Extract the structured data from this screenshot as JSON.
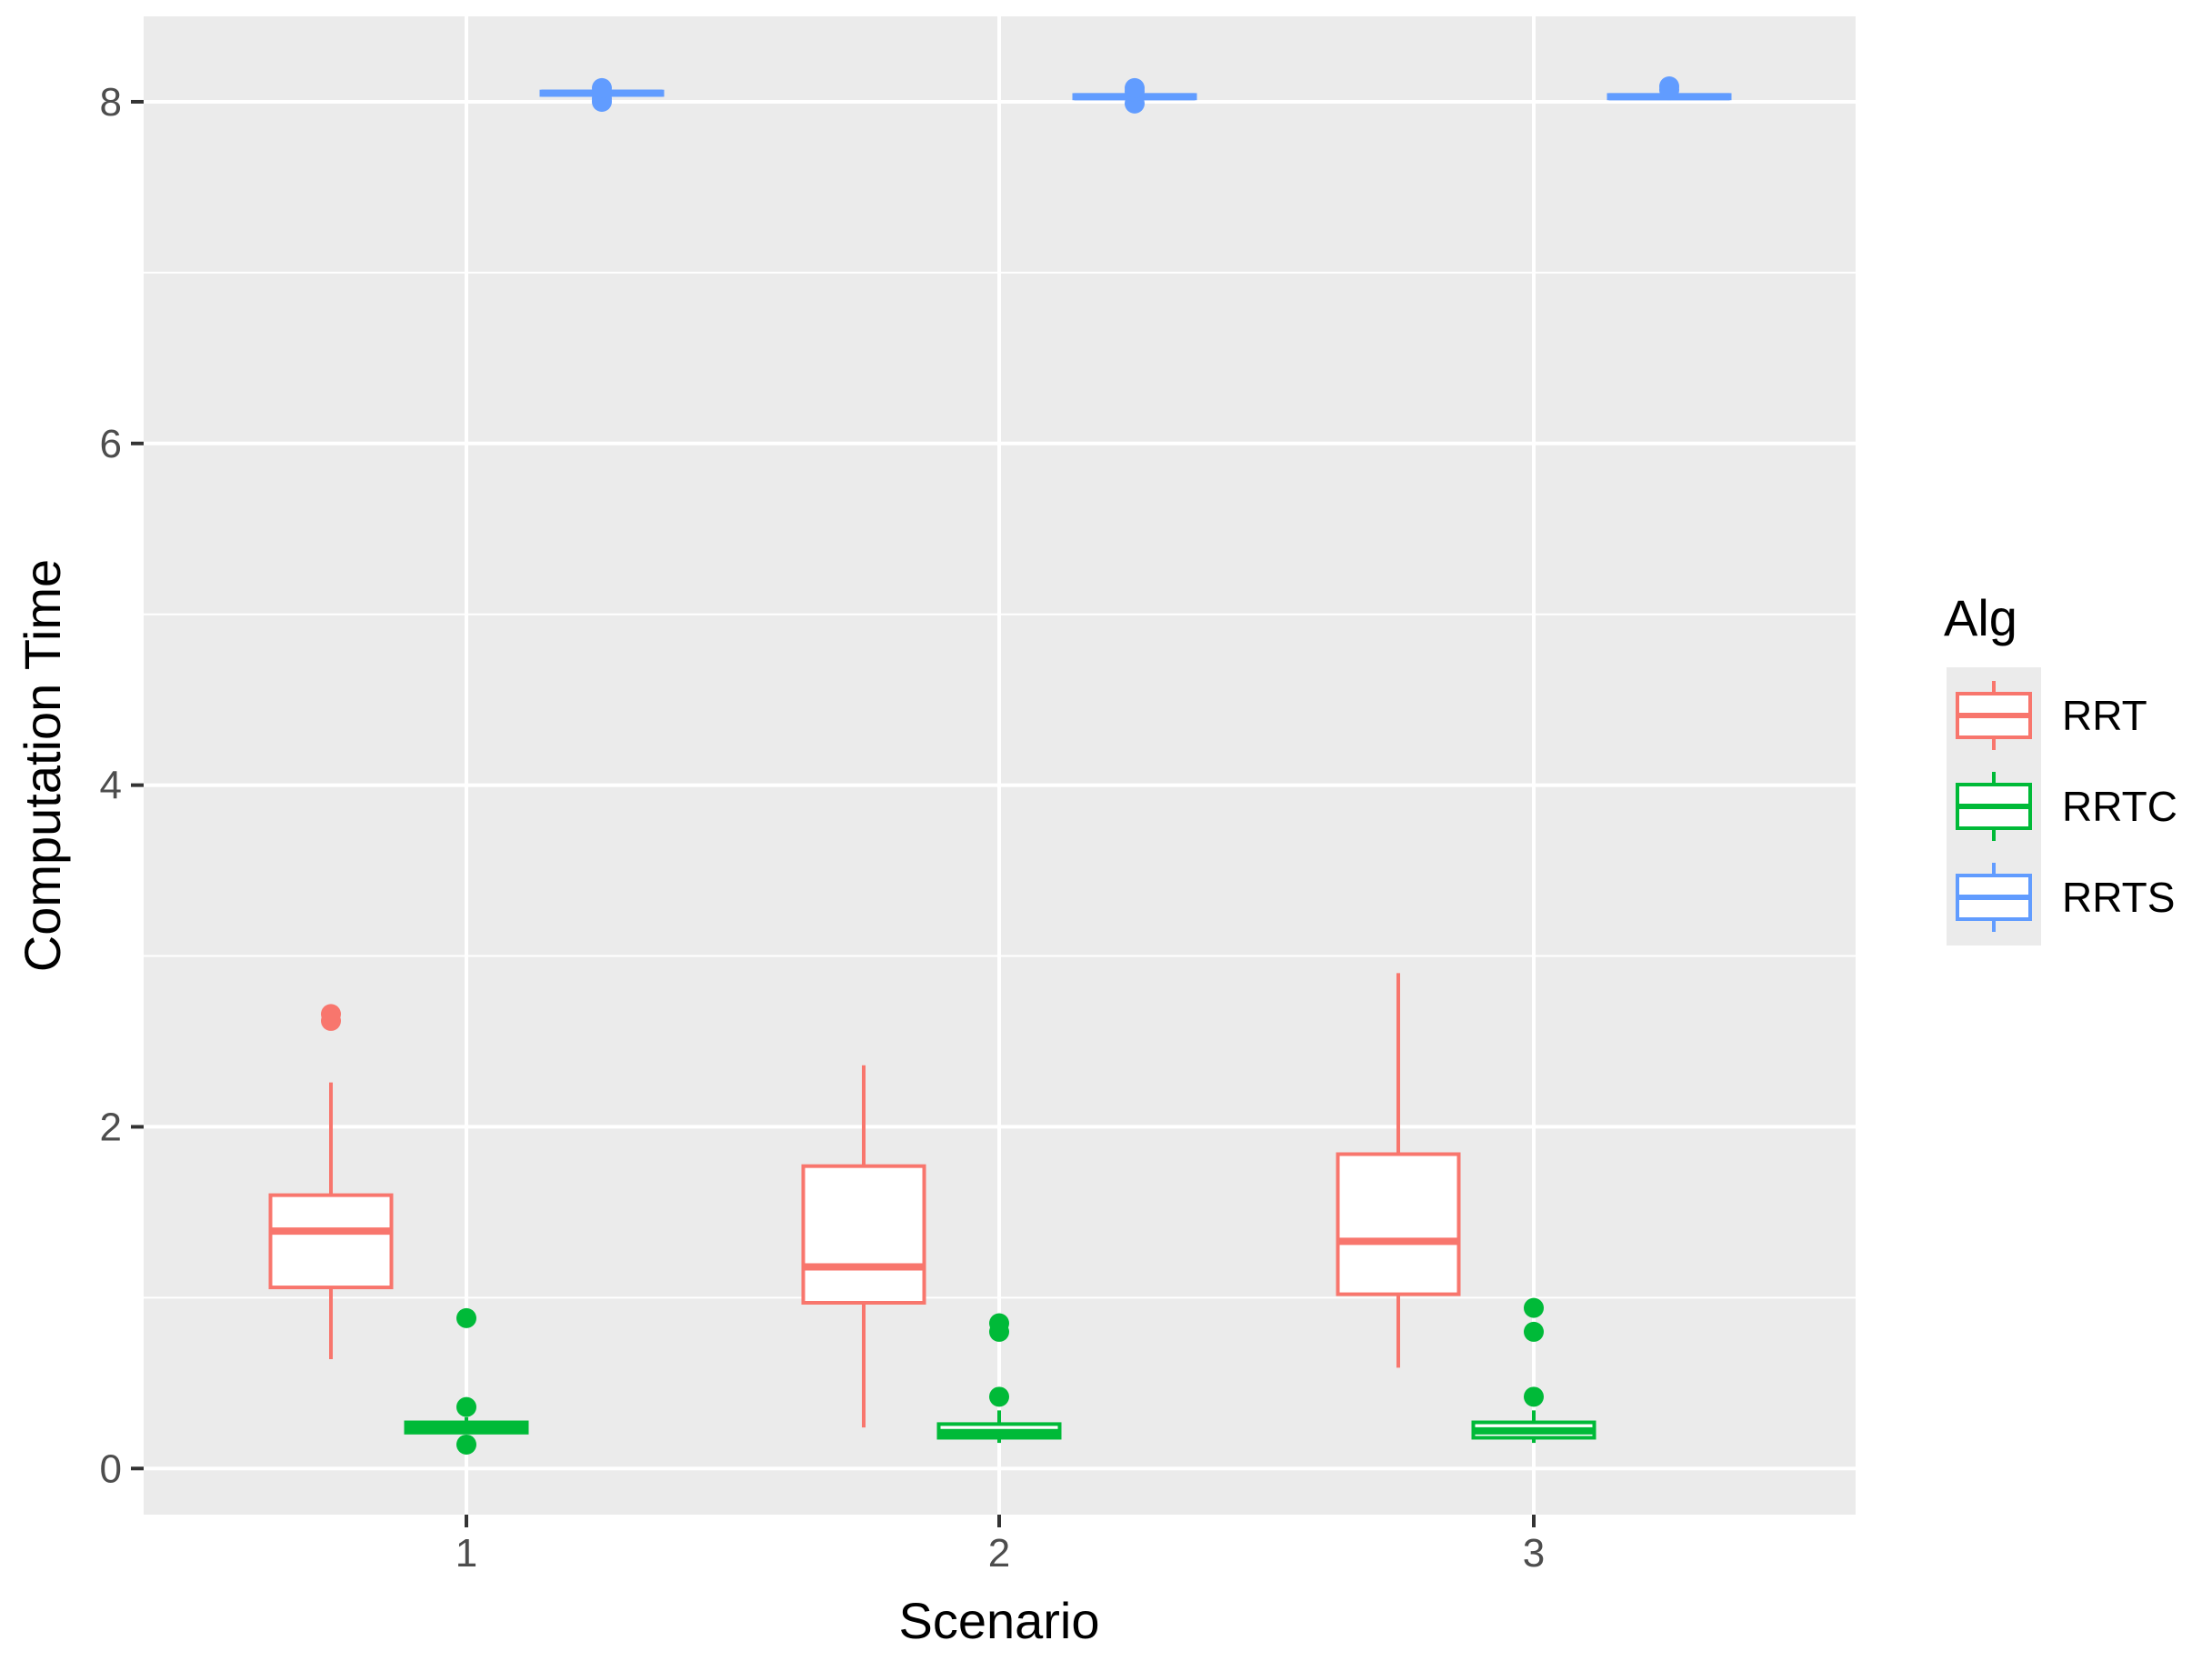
{
  "chart_data": {
    "type": "boxplot",
    "xlabel": "Scenario",
    "ylabel": "Computation Time",
    "categories": [
      "1",
      "2",
      "3"
    ],
    "ylim": [
      -0.27,
      8.5
    ],
    "yticks": [
      0,
      2,
      4,
      6,
      8
    ],
    "grid": true,
    "legend": {
      "title": "Alg",
      "position": "right",
      "entries": [
        "RRT",
        "RRTC",
        "RRTS"
      ]
    },
    "series": [
      {
        "name": "RRT",
        "color": "#F8766D",
        "boxes": [
          {
            "category": "1",
            "lower_whisker": 0.64,
            "q1": 1.06,
            "median": 1.39,
            "q3": 1.6,
            "upper_whisker": 2.26,
            "outliers": [
              2.62,
              2.66
            ]
          },
          {
            "category": "2",
            "lower_whisker": 0.24,
            "q1": 0.97,
            "median": 1.18,
            "q3": 1.77,
            "upper_whisker": 2.36,
            "outliers": []
          },
          {
            "category": "3",
            "lower_whisker": 0.59,
            "q1": 1.02,
            "median": 1.33,
            "q3": 1.84,
            "upper_whisker": 2.9,
            "outliers": []
          }
        ]
      },
      {
        "name": "RRTC",
        "color": "#00BA38",
        "boxes": [
          {
            "category": "1",
            "lower_whisker": 0.21,
            "q1": 0.21,
            "median": 0.24,
            "q3": 0.27,
            "upper_whisker": 0.3,
            "outliers": [
              0.14,
              0.36,
              0.88
            ]
          },
          {
            "category": "2",
            "lower_whisker": 0.15,
            "q1": 0.18,
            "median": 0.21,
            "q3": 0.26,
            "upper_whisker": 0.34,
            "outliers": [
              0.42,
              0.8,
              0.85
            ]
          },
          {
            "category": "3",
            "lower_whisker": 0.15,
            "q1": 0.18,
            "median": 0.22,
            "q3": 0.27,
            "upper_whisker": 0.34,
            "outliers": [
              0.42,
              0.8,
              0.94
            ]
          }
        ]
      },
      {
        "name": "RRTS",
        "color": "#619CFF",
        "boxes": [
          {
            "category": "1",
            "lower_whisker": 8.03,
            "q1": 8.04,
            "median": 8.05,
            "q3": 8.06,
            "upper_whisker": 8.07,
            "outliers": [
              8.0,
              8.02,
              8.08
            ]
          },
          {
            "category": "2",
            "lower_whisker": 8.01,
            "q1": 8.02,
            "median": 8.03,
            "q3": 8.04,
            "upper_whisker": 8.05,
            "outliers": [
              7.99,
              8.06,
              8.08
            ]
          },
          {
            "category": "3",
            "lower_whisker": 8.01,
            "q1": 8.02,
            "median": 8.03,
            "q3": 8.04,
            "upper_whisker": 8.05,
            "outliers": [
              8.07,
              8.09
            ]
          }
        ]
      }
    ],
    "colors": {
      "panel_background": "#EBEBEB",
      "grid_major": "#FFFFFF",
      "grid_minor": "#F5F5F5",
      "tick_text": "#4D4D4D",
      "box_fill": "#FFFFFF"
    }
  }
}
